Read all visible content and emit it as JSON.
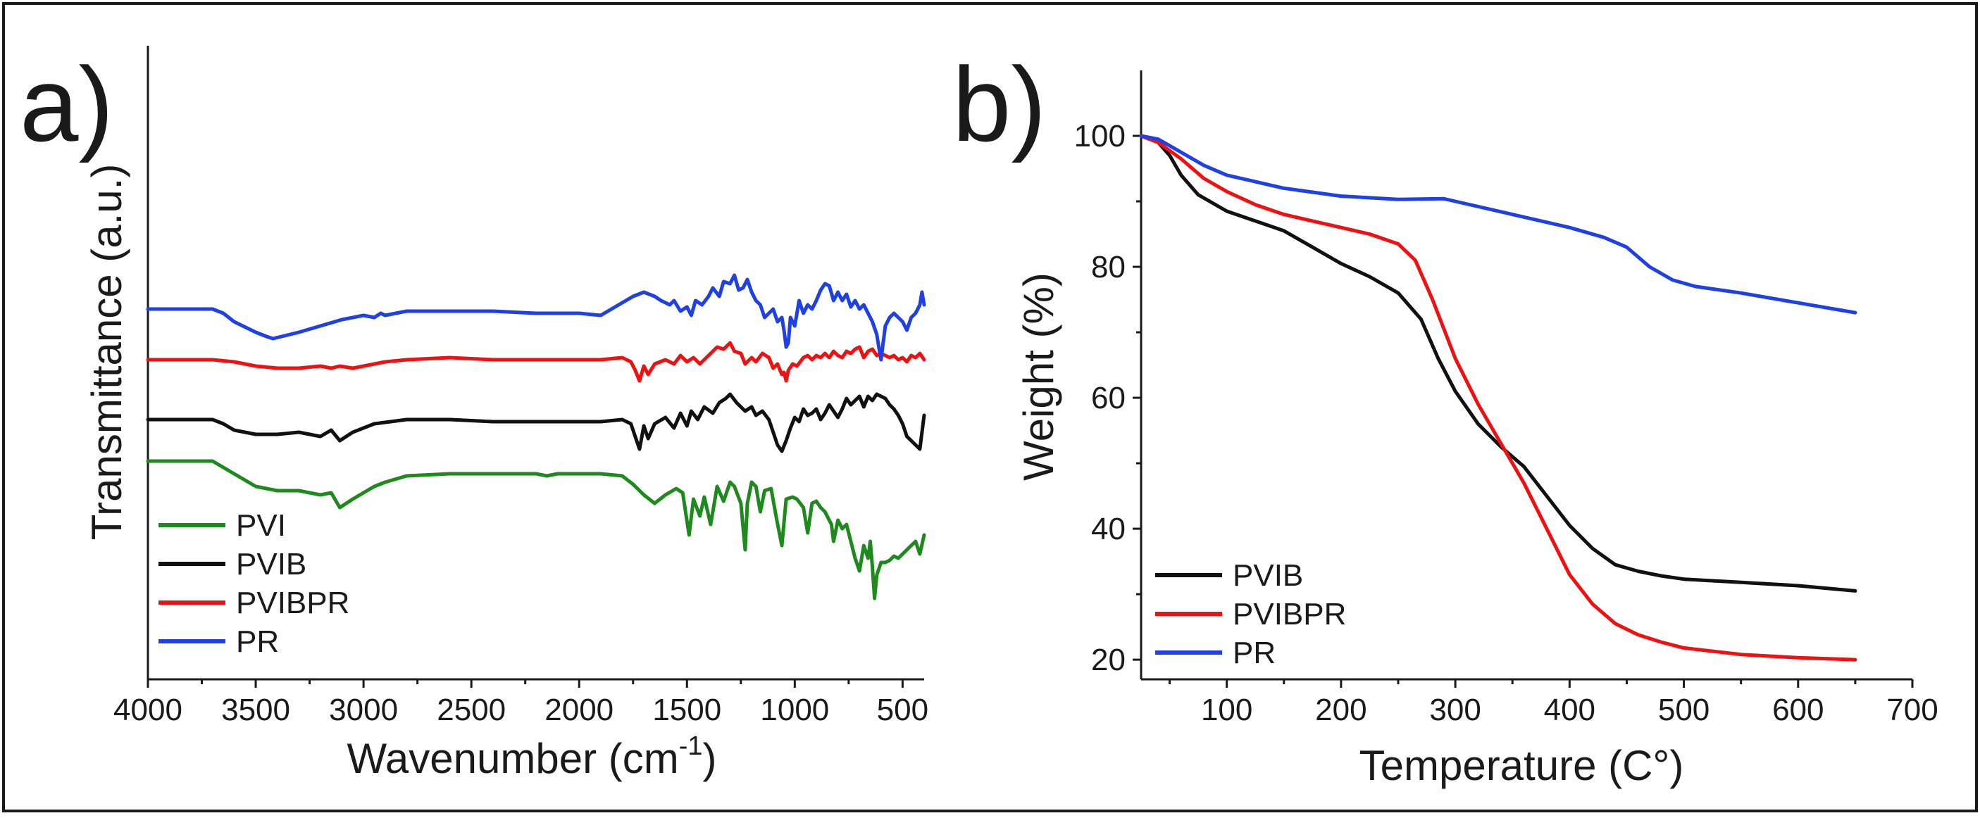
{
  "chart_data": [
    {
      "type": "line",
      "panel_label": "a)",
      "title": "",
      "xlabel": "Wavenumber (cm",
      "xlabel_sup": "-1",
      "xlabel_close": ")",
      "ylabel": "Transmittance (a.u.)",
      "xlim": [
        4000,
        400
      ],
      "x_reversed": true,
      "xticks": [
        4000,
        3500,
        3000,
        2500,
        2000,
        1500,
        1000,
        500
      ],
      "yticks": [],
      "grid": false,
      "legend_position": "bottom-left",
      "legend": [
        "PVI",
        "PVIB",
        "PVIBPR",
        "PR"
      ],
      "series": [
        {
          "name": "PVI",
          "color": "#1e8a1e",
          "offset": 0,
          "x": [
            4000,
            3700,
            3600,
            3500,
            3400,
            3300,
            3200,
            3150,
            3110,
            3050,
            3000,
            2950,
            2900,
            2800,
            2600,
            2400,
            2200,
            2150,
            2100,
            2000,
            1900,
            1800,
            1750,
            1700,
            1650,
            1600,
            1550,
            1520,
            1490,
            1470,
            1440,
            1420,
            1390,
            1360,
            1330,
            1300,
            1280,
            1250,
            1230,
            1220,
            1200,
            1180,
            1160,
            1140,
            1110,
            1085,
            1060,
            1040,
            1010,
            990,
            960,
            940,
            920,
            900,
            880,
            860,
            830,
            820,
            800,
            780,
            760,
            740,
            720,
            700,
            680,
            660,
            650,
            640,
            630,
            620,
            600,
            580,
            560,
            540,
            520,
            500,
            480,
            460,
            440,
            420,
            400
          ],
          "y": [
            90,
            90,
            84,
            78,
            76,
            76,
            74,
            75,
            68,
            72,
            75,
            78,
            80,
            83,
            84,
            84,
            84,
            83,
            84,
            84,
            84,
            83,
            79,
            74,
            70,
            74,
            77,
            75,
            55,
            72,
            64,
            73,
            60,
            78,
            71,
            80,
            78,
            70,
            48,
            70,
            80,
            78,
            66,
            76,
            77,
            63,
            50,
            72,
            73,
            72,
            68,
            56,
            70,
            71,
            68,
            66,
            60,
            52,
            62,
            58,
            60,
            52,
            44,
            38,
            50,
            44,
            52,
            40,
            25,
            36,
            42,
            42,
            43,
            45,
            44,
            46,
            48,
            50,
            52,
            46,
            55
          ]
        },
        {
          "name": "PVIB",
          "color": "#111111",
          "offset": 95,
          "x": [
            4000,
            3700,
            3650,
            3600,
            3500,
            3400,
            3300,
            3200,
            3150,
            3110,
            3050,
            3000,
            2950,
            2800,
            2600,
            2400,
            2200,
            2000,
            1900,
            1800,
            1760,
            1740,
            1720,
            1700,
            1680,
            1650,
            1600,
            1560,
            1530,
            1500,
            1480,
            1450,
            1420,
            1380,
            1350,
            1320,
            1300,
            1270,
            1250,
            1230,
            1200,
            1180,
            1150,
            1120,
            1100,
            1080,
            1060,
            1040,
            1020,
            1000,
            980,
            960,
            940,
            920,
            900,
            880,
            860,
            840,
            820,
            800,
            780,
            760,
            740,
            720,
            700,
            680,
            660,
            640,
            620,
            600,
            580,
            560,
            540,
            520,
            500,
            480,
            460,
            440,
            420,
            400
          ],
          "y": [
            78,
            78,
            76,
            73,
            71,
            71,
            72,
            70,
            73,
            68,
            72,
            74,
            76,
            78,
            78,
            77,
            77,
            77,
            77,
            78,
            76,
            70,
            64,
            75,
            69,
            76,
            79,
            74,
            81,
            75,
            82,
            78,
            84,
            81,
            86,
            88,
            90,
            86,
            84,
            82,
            84,
            80,
            82,
            78,
            72,
            66,
            63,
            68,
            74,
            79,
            77,
            83,
            80,
            81,
            83,
            78,
            81,
            85,
            82,
            79,
            83,
            88,
            85,
            87,
            89,
            84,
            89,
            87,
            90,
            89,
            88,
            85,
            83,
            80,
            76,
            70,
            68,
            66,
            64,
            80
          ]
        },
        {
          "name": "PVIBPR",
          "color": "#ee1111",
          "offset": 180,
          "x": [
            4000,
            3700,
            3600,
            3500,
            3400,
            3300,
            3200,
            3150,
            3110,
            3050,
            3000,
            2900,
            2800,
            2600,
            2400,
            2200,
            2000,
            1900,
            1800,
            1760,
            1740,
            1720,
            1700,
            1680,
            1650,
            1600,
            1560,
            1530,
            1500,
            1470,
            1440,
            1400,
            1360,
            1330,
            1300,
            1280,
            1250,
            1230,
            1200,
            1180,
            1150,
            1120,
            1100,
            1080,
            1060,
            1050,
            1040,
            1030,
            1010,
            990,
            960,
            940,
            920,
            900,
            880,
            860,
            840,
            820,
            800,
            780,
            760,
            740,
            720,
            700,
            680,
            660,
            640,
            620,
            600,
            580,
            560,
            540,
            520,
            500,
            480,
            460,
            440,
            420,
            400
          ],
          "y": [
            78,
            78,
            77,
            75,
            74,
            74,
            75,
            74,
            75,
            74,
            75,
            77,
            78,
            79,
            78,
            78,
            78,
            78,
            79,
            77,
            73,
            68,
            75,
            71,
            76,
            78,
            76,
            80,
            77,
            79,
            76,
            80,
            84,
            83,
            86,
            82,
            81,
            76,
            79,
            77,
            81,
            79,
            74,
            76,
            71,
            72,
            68,
            73,
            76,
            75,
            79,
            80,
            78,
            80,
            79,
            81,
            79,
            82,
            80,
            79,
            82,
            81,
            83,
            84,
            79,
            82,
            83,
            80,
            81,
            80,
            79,
            80,
            78,
            79,
            77,
            80,
            79,
            81,
            78
          ]
        },
        {
          "name": "PR",
          "color": "#1e40e6",
          "offset": 258,
          "x": [
            4000,
            3700,
            3650,
            3600,
            3500,
            3450,
            3420,
            3380,
            3300,
            3200,
            3100,
            3000,
            2950,
            2920,
            2900,
            2800,
            2600,
            2400,
            2200,
            2000,
            1900,
            1800,
            1750,
            1700,
            1650,
            1620,
            1600,
            1580,
            1560,
            1530,
            1500,
            1480,
            1460,
            1430,
            1400,
            1380,
            1350,
            1330,
            1300,
            1280,
            1260,
            1240,
            1220,
            1200,
            1180,
            1160,
            1140,
            1120,
            1100,
            1080,
            1060,
            1050,
            1040,
            1030,
            1020,
            1000,
            980,
            960,
            940,
            920,
            900,
            880,
            860,
            840,
            820,
            800,
            780,
            760,
            740,
            720,
            700,
            680,
            660,
            640,
            620,
            610,
            600,
            590,
            580,
            560,
            540,
            520,
            500,
            480,
            460,
            440,
            420,
            410,
            400
          ],
          "y": [
            76,
            76,
            74,
            70,
            65,
            63,
            62,
            63,
            65,
            68,
            71,
            73,
            72,
            74,
            73,
            75,
            75,
            75,
            74,
            74,
            73,
            79,
            82,
            84,
            82,
            80,
            79,
            78,
            80,
            75,
            77,
            73,
            80,
            78,
            82,
            86,
            82,
            89,
            88,
            92,
            85,
            86,
            90,
            84,
            80,
            78,
            72,
            74,
            76,
            70,
            72,
            66,
            58,
            60,
            72,
            68,
            80,
            74,
            78,
            76,
            80,
            85,
            88,
            87,
            80,
            84,
            80,
            83,
            77,
            80,
            76,
            78,
            74,
            70,
            64,
            58,
            52,
            60,
            68,
            72,
            74,
            72,
            70,
            66,
            72,
            74,
            78,
            84,
            78
          ]
        }
      ]
    },
    {
      "type": "line",
      "panel_label": "b)",
      "title": "",
      "xlabel": "Temperature (C°)",
      "ylabel": "Weight (%)",
      "xlim": [
        25,
        700
      ],
      "ylim": [
        17,
        110
      ],
      "xticks": [
        100,
        200,
        300,
        400,
        500,
        600,
        700
      ],
      "yticks": [
        20,
        40,
        60,
        80,
        100
      ],
      "grid": false,
      "legend_position": "bottom-left",
      "legend": [
        "PVIB",
        "PVIBPR",
        "PR"
      ],
      "series": [
        {
          "name": "PVIB",
          "color": "#111111",
          "x": [
            25,
            40,
            50,
            60,
            75,
            100,
            125,
            150,
            175,
            200,
            225,
            250,
            270,
            285,
            300,
            320,
            340,
            360,
            380,
            400,
            420,
            440,
            460,
            480,
            500,
            550,
            600,
            650
          ],
          "y": [
            100,
            99,
            97,
            94,
            91,
            88.5,
            87,
            85.5,
            83,
            80.5,
            78.5,
            76,
            72,
            66,
            61,
            56,
            52.5,
            49.5,
            45,
            40.5,
            37,
            34.5,
            33.5,
            32.8,
            32.3,
            31.8,
            31.3,
            30.5
          ]
        },
        {
          "name": "PVIBPR",
          "color": "#ee1111",
          "x": [
            25,
            40,
            60,
            80,
            100,
            125,
            150,
            175,
            200,
            225,
            250,
            265,
            280,
            300,
            320,
            340,
            360,
            380,
            400,
            420,
            440,
            460,
            480,
            500,
            550,
            600,
            650
          ],
          "y": [
            100,
            99,
            96.5,
            93.5,
            91.5,
            89.5,
            88,
            87,
            86,
            85,
            83.5,
            81,
            75,
            66,
            59,
            53,
            47,
            40,
            33,
            28.5,
            25.5,
            23.8,
            22.7,
            21.8,
            20.8,
            20.3,
            20.0
          ]
        },
        {
          "name": "PR",
          "color": "#1e40e6",
          "x": [
            25,
            40,
            60,
            80,
            100,
            150,
            200,
            250,
            290,
            300,
            350,
            400,
            430,
            450,
            470,
            490,
            510,
            550,
            600,
            650
          ],
          "y": [
            100,
            99.5,
            97.5,
            95.5,
            94,
            92,
            90.8,
            90.3,
            90.4,
            90,
            88,
            86,
            84.5,
            83,
            80,
            78,
            77,
            76,
            74.5,
            73
          ]
        }
      ]
    }
  ]
}
